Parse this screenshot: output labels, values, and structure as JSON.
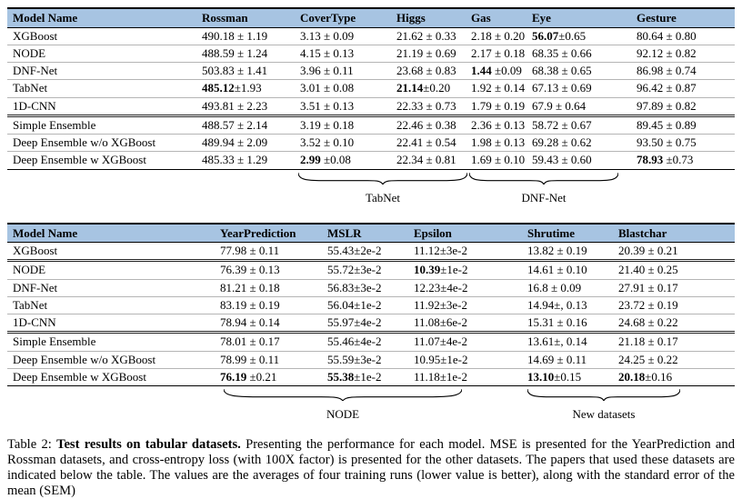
{
  "table1": {
    "headers": [
      "Model Name",
      "Rossman",
      "CoverType",
      "Higgs",
      "Gas",
      "Eye",
      "Gesture"
    ],
    "rows": [
      {
        "model": "XGBoost",
        "cells": [
          "490.18 ± 1.19",
          "3.13 ± 0.09",
          "21.62 ± 0.33",
          "2.18 ± 0.20",
          {
            "bold": "56.07",
            "rest": "±0.65"
          },
          "80.64 ± 0.80"
        ]
      },
      {
        "model": "NODE",
        "cells": [
          "488.59 ± 1.24",
          "4.15 ± 0.13",
          "21.19 ± 0.69",
          "2.17 ± 0.18",
          "68.35 ± 0.66",
          "92.12 ± 0.82"
        ]
      },
      {
        "model": "DNF-Net",
        "cells": [
          "503.83 ± 1.41",
          "3.96 ± 0.11",
          "23.68 ± 0.83",
          {
            "bold": "1.44",
            "rest": " ±0.09"
          },
          "68.38 ± 0.65",
          "86.98 ± 0.74"
        ]
      },
      {
        "model": "TabNet",
        "cells": [
          {
            "bold": "485.12",
            "rest": "±1.93"
          },
          "3.01 ± 0.08",
          {
            "bold": "21.14",
            "rest": "±0.20"
          },
          "1.92 ± 0.14",
          "67.13 ± 0.69",
          "96.42 ± 0.87"
        ]
      },
      {
        "model": "1D-CNN",
        "cells": [
          "493.81 ± 2.23",
          "3.51 ± 0.13",
          "22.33 ± 0.73",
          "1.79 ± 0.19",
          "67.9 ± 0.64",
          "97.89 ± 0.82"
        ]
      },
      {
        "model": "Simple Ensemble",
        "group_start": true,
        "cells": [
          "488.57 ± 2.14",
          "3.19 ± 0.18",
          "22.46 ± 0.38",
          "2.36 ± 0.13",
          "58.72 ± 0.67",
          "89.45 ± 0.89"
        ]
      },
      {
        "model": "Deep Ensemble w/o XGBoost",
        "cells": [
          "489.94 ± 2.09",
          "3.52 ± 0.10",
          "22.41 ± 0.54",
          "1.98 ± 0.13",
          "69.28 ± 0.62",
          "93.50 ± 0.75"
        ]
      },
      {
        "model": "Deep Ensemble w XGBoost",
        "cells": [
          "485.33 ± 1.29",
          {
            "bold": "2.99",
            "rest": " ±0.08"
          },
          "22.34 ± 0.81",
          "1.69 ± 0.10",
          "59.43 ± 0.60",
          {
            "bold": "78.93",
            "rest": " ±0.73"
          }
        ]
      }
    ],
    "braces": [
      {
        "label": "TabNet"
      },
      {
        "label": "DNF-Net"
      }
    ]
  },
  "table2": {
    "headers": [
      "Model Name",
      "YearPrediction",
      "MSLR",
      "Epsilon",
      "Shrutime",
      "Blastchar"
    ],
    "rows": [
      {
        "model": "XGBoost",
        "cells": [
          "77.98 ± 0.11",
          "55.43±2e-2",
          "11.12±3e-2",
          "13.82 ± 0.19",
          "20.39 ± 0.21"
        ]
      },
      {
        "model": "NODE",
        "group_start": true,
        "cells": [
          "76.39 ± 0.13",
          "55.72±3e-2",
          {
            "bold": "10.39",
            "rest": "±1e-2"
          },
          "14.61 ± 0.10",
          "21.40 ± 0.25"
        ]
      },
      {
        "model": "DNF-Net",
        "cells": [
          "81.21 ± 0.18",
          "56.83±3e-2",
          "12.23±4e-2",
          "16.8 ± 0.09",
          "27.91 ± 0.17"
        ]
      },
      {
        "model": "TabNet",
        "cells": [
          "83.19 ± 0.19",
          "56.04±1e-2",
          "11.92±3e-2",
          "14.94±, 0.13",
          "23.72 ± 0.19"
        ]
      },
      {
        "model": "1D-CNN",
        "cells": [
          "78.94 ± 0.14",
          "55.97±4e-2",
          "11.08±6e-2",
          "15.31 ± 0.16",
          "24.68 ± 0.22"
        ]
      },
      {
        "model": "Simple Ensemble",
        "group_start": true,
        "cells": [
          "78.01 ± 0.17",
          "55.46±4e-2",
          "11.07±4e-2",
          "13.61±, 0.14",
          "21.18 ± 0.17"
        ]
      },
      {
        "model": "Deep Ensemble w/o XGBoost",
        "cells": [
          "78.99 ± 0.11",
          "55.59±3e-2",
          "10.95±1e-2",
          "14.69 ± 0.11",
          "24.25 ± 0.22"
        ]
      },
      {
        "model": "Deep Ensemble w XGBoost",
        "cells": [
          {
            "bold": "76.19",
            "rest": " ±0.21"
          },
          {
            "bold": "55.38",
            "rest": "±1e-2"
          },
          "11.18±1e-2",
          {
            "bold": "13.10",
            "rest": "±0.15"
          },
          {
            "bold": "20.18",
            "rest": "±0.16"
          }
        ]
      }
    ],
    "braces": [
      {
        "label": "NODE"
      },
      {
        "label": "New datasets"
      }
    ]
  },
  "caption": {
    "prefix": "Table 2: ",
    "bold": "Test results on tabular datasets.",
    "rest": " Presenting the performance for each model.  MSE is presented for the YearPrediction and Rossman datasets, and cross-entropy loss (with 100X factor) is presented for the other datasets. The papers that used these datasets are indicated below the table. The values are the averages of four training runs (lower value is better), along with the standard error of the mean (SEM)"
  }
}
